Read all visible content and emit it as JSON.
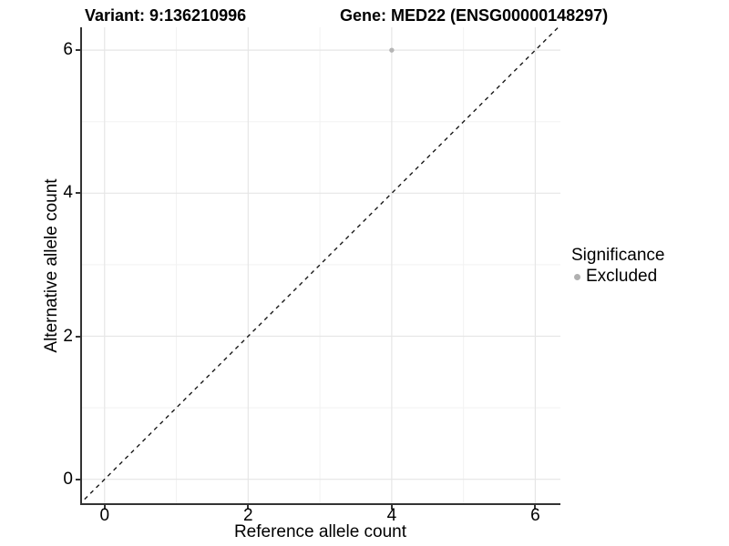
{
  "chart_data": {
    "type": "scatter",
    "title_left": "Variant: 9:136210996",
    "title_right": "Gene: MED22 (ENSG00000148297)",
    "xlabel": "Reference allele count",
    "ylabel": "Alternative allele count",
    "xticks": [
      0,
      2,
      4,
      6
    ],
    "yticks": [
      0,
      2,
      4,
      6
    ],
    "minor_xticks": [
      1,
      3,
      5
    ],
    "minor_yticks": [
      1,
      3,
      5
    ],
    "xlim": [
      -0.34,
      6.35
    ],
    "ylim": [
      -0.36,
      6.32
    ],
    "grid": true,
    "legend_position": "right",
    "series": [
      {
        "name": "Excluded",
        "color": "#b5b5b5",
        "points": [
          {
            "x": 4,
            "y": 6
          }
        ]
      }
    ],
    "reference_line": {
      "kind": "abline",
      "slope": 1,
      "intercept": 0,
      "linetype": "dashed",
      "color": "#1a1a1a"
    },
    "legend": {
      "title": "Significance",
      "items": [
        {
          "label": "Excluded",
          "color": "#b0b0b0"
        }
      ]
    }
  },
  "colors": {
    "background": "#ffffff",
    "grid_major": "#e6e6e6",
    "grid_minor": "#f2f2f2",
    "axis_line": "#333333",
    "text": "#000000",
    "point": "#b5b5b5"
  }
}
